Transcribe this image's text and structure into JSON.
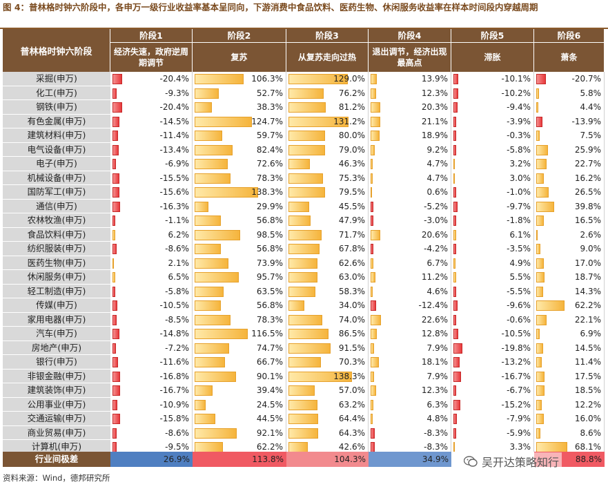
{
  "title": "图 4：普林格时钟六阶段中，各申万一级行业收益率基本呈同向，下游消费中食品饮料、医药生物、休闲服务收益率在样本时间段内穿越周期",
  "header": {
    "corner": "普林格时钟六阶段",
    "stages": [
      {
        "name": "阶段1",
        "desc": "经济失速，政府逆周期调节"
      },
      {
        "name": "阶段2",
        "desc": "复苏"
      },
      {
        "name": "阶段3",
        "desc": "从复苏走向过热"
      },
      {
        "name": "阶段4",
        "desc": "退出调节，经济出现最高点"
      },
      {
        "name": "阶段5",
        "desc": "滞胀"
      },
      {
        "name": "阶段6",
        "desc": "萧条"
      }
    ]
  },
  "rows": [
    {
      "label": "采掘(申万)",
      "values": [
        -20.4,
        106.3,
        129.0,
        13.9,
        -10.1,
        -20.7
      ],
      "display": [
        "-20.4%",
        "106.3%",
        "129.0%",
        "13.9%",
        "-10.1%",
        "-20.7%"
      ]
    },
    {
      "label": "化工(申万)",
      "values": [
        -9.3,
        52.7,
        76.2,
        12.3,
        -10.2,
        5.8
      ],
      "display": [
        "-9.3%",
        "52.7%",
        "76.2%",
        "12.3%",
        "-10.2%",
        "5.8%"
      ]
    },
    {
      "label": "钢铁(申万)",
      "values": [
        -20.4,
        38.3,
        81.2,
        20.3,
        -9.4,
        4.4
      ],
      "display": [
        "-20.4%",
        "38.3%",
        "81.2%",
        "20.3%",
        "-9.4%",
        "4.4%"
      ]
    },
    {
      "label": "有色金属(申万)",
      "values": [
        -14.5,
        124.7,
        131.2,
        21.1,
        -3.9,
        -13.9
      ],
      "display": [
        "-14.5%",
        "124.7%",
        "131.2%",
        "21.1%",
        "-3.9%",
        "-13.9%"
      ]
    },
    {
      "label": "建筑材料(申万)",
      "values": [
        -11.4,
        59.7,
        80.0,
        18.9,
        -0.3,
        7.5
      ],
      "display": [
        "-11.4%",
        "59.7%",
        "80.0%",
        "18.9%",
        "-0.3%",
        "7.5%"
      ]
    },
    {
      "label": "电气设备(申万)",
      "values": [
        -13.4,
        82.4,
        79.0,
        9.2,
        -5.8,
        25.9
      ],
      "display": [
        "-13.4%",
        "82.4%",
        "79.0%",
        "9.2%",
        "-5.8%",
        "25.9%"
      ]
    },
    {
      "label": "电子(申万)",
      "values": [
        -6.9,
        72.6,
        46.3,
        4.7,
        3.2,
        22.7
      ],
      "display": [
        "-6.9%",
        "72.6%",
        "46.3%",
        "4.7%",
        "3.2%",
        "22.7%"
      ]
    },
    {
      "label": "机械设备(申万)",
      "values": [
        -15.5,
        78.3,
        75.3,
        4.7,
        3.0,
        16.2
      ],
      "display": [
        "-15.5%",
        "78.3%",
        "75.3%",
        "4.7%",
        "3.0%",
        "16.2%"
      ]
    },
    {
      "label": "国防军工(申万)",
      "values": [
        -15.6,
        138.3,
        79.5,
        0.6,
        -1.0,
        26.5
      ],
      "display": [
        "-15.6%",
        "138.3%",
        "79.5%",
        "0.6%",
        "-1.0%",
        "26.5%"
      ]
    },
    {
      "label": "通信(申万)",
      "values": [
        -16.3,
        29.9,
        45.5,
        -5.2,
        -9.7,
        39.8
      ],
      "display": [
        "-16.3%",
        "29.9%",
        "45.5%",
        "-5.2%",
        "-9.7%",
        "39.8%"
      ]
    },
    {
      "label": "农林牧渔(申万)",
      "values": [
        -1.1,
        56.8,
        47.9,
        -3.0,
        -1.8,
        16.5
      ],
      "display": [
        "-1.1%",
        "56.8%",
        "47.9%",
        "-3.0%",
        "-1.8%",
        "16.5%"
      ]
    },
    {
      "label": "食品饮料(申万)",
      "values": [
        6.2,
        98.5,
        71.7,
        20.6,
        6.1,
        2.6
      ],
      "display": [
        "6.2%",
        "98.5%",
        "71.7%",
        "20.6%",
        "6.1%",
        "2.6%"
      ]
    },
    {
      "label": "纺织服装(申万)",
      "values": [
        -8.6,
        56.8,
        67.8,
        -4.2,
        -3.5,
        9.0
      ],
      "display": [
        "-8.6%",
        "56.8%",
        "67.8%",
        "-4.2%",
        "-3.5%",
        "9.0%"
      ]
    },
    {
      "label": "医药生物(申万)",
      "values": [
        2.1,
        73.9,
        62.6,
        6.7,
        4.9,
        17.0
      ],
      "display": [
        "2.1%",
        "73.9%",
        "62.6%",
        "6.7%",
        "4.9%",
        "17.0%"
      ]
    },
    {
      "label": "休闲服务(申万)",
      "values": [
        6.5,
        95.7,
        63.0,
        11.2,
        5.5,
        18.7
      ],
      "display": [
        "6.5%",
        "95.7%",
        "63.0%",
        "11.2%",
        "5.5%",
        "18.7%"
      ]
    },
    {
      "label": "轻工制造(申万)",
      "values": [
        -5.8,
        63.5,
        58.3,
        4.6,
        -5.5,
        14.3
      ],
      "display": [
        "-5.8%",
        "63.5%",
        "58.3%",
        "4.6%",
        "-5.5%",
        "14.3%"
      ]
    },
    {
      "label": "传媒(申万)",
      "values": [
        -10.5,
        56.8,
        34.0,
        -12.4,
        -9.6,
        62.2
      ],
      "display": [
        "-10.5%",
        "56.8%",
        "34.0%",
        "-12.4%",
        "-9.6%",
        "62.2%"
      ]
    },
    {
      "label": "家用电器(申万)",
      "values": [
        -8.5,
        78.3,
        74.0,
        22.6,
        -0.6,
        22.1
      ],
      "display": [
        "-8.5%",
        "78.3%",
        "74.0%",
        "22.6%",
        "-0.6%",
        "22.1%"
      ]
    },
    {
      "label": "汽车(申万)",
      "values": [
        -14.8,
        116.5,
        86.5,
        12.8,
        -10.5,
        6.9
      ],
      "display": [
        "-14.8%",
        "116.5%",
        "86.5%",
        "12.8%",
        "-10.5%",
        "6.9%"
      ]
    },
    {
      "label": "房地产(申万)",
      "values": [
        -7.2,
        74.7,
        91.5,
        7.9,
        -19.8,
        14.5
      ],
      "display": [
        "-7.2%",
        "74.7%",
        "91.5%",
        "7.9%",
        "-19.8%",
        "14.5%"
      ]
    },
    {
      "label": "银行(申万)",
      "values": [
        -11.6,
        66.7,
        70.3,
        18.1,
        -13.2,
        11.4
      ],
      "display": [
        "-11.6%",
        "66.7%",
        "70.3%",
        "18.1%",
        "-13.2%",
        "11.4%"
      ]
    },
    {
      "label": "非银金融(申万)",
      "values": [
        -16.8,
        90.1,
        138.3,
        7.9,
        -16.7,
        17.5
      ],
      "display": [
        "-16.8%",
        "90.1%",
        "138.3%",
        "7.9%",
        "-16.7%",
        "17.5%"
      ]
    },
    {
      "label": "建筑装饰(申万)",
      "values": [
        -16.7,
        39.4,
        57.0,
        12.3,
        -6.7,
        18.5
      ],
      "display": [
        "-16.7%",
        "39.4%",
        "57.0%",
        "12.3%",
        "-6.7%",
        "18.5%"
      ]
    },
    {
      "label": "公用事业(申万)",
      "values": [
        -10.9,
        24.5,
        63.2,
        6.3,
        -15.2,
        12.2
      ],
      "display": [
        "-10.9%",
        "24.5%",
        "63.2%",
        "6.3%",
        "-15.2%",
        "12.2%"
      ]
    },
    {
      "label": "交通运输(申万)",
      "values": [
        -15.8,
        44.5,
        64.4,
        4.8,
        -7.9,
        16.0
      ],
      "display": [
        "-15.8%",
        "44.5%",
        "64.4%",
        "4.8%",
        "-7.9%",
        "16.0%"
      ]
    },
    {
      "label": "商业贸易(申万)",
      "values": [
        -8.6,
        92.1,
        64.3,
        -8.3,
        -5.9,
        8.6
      ],
      "display": [
        "-8.6%",
        "92.1%",
        "64.3%",
        "-8.3%",
        "-5.9%",
        "8.6%"
      ]
    },
    {
      "label": "计算机(申万)",
      "values": [
        -9.5,
        62.2,
        42.6,
        -8.3,
        3.3,
        68.1
      ],
      "display": [
        "-9.5%",
        "62.2%",
        "42.6%",
        "-8.3%",
        "3.3%",
        "68.1%"
      ]
    }
  ],
  "footer": {
    "label": "行业间极差",
    "values": [
      "26.9%",
      "113.8%",
      "104.3%",
      "34.9%",
      "",
      "88.8%"
    ],
    "colors": [
      "#4f7fc1",
      "#f05a63",
      "#f28a8e",
      "#6f97cf",
      "#ffffff",
      "#f05a63"
    ]
  },
  "source": "资料来源：Wind，德邦研究所",
  "watermark": "吴开达策略知行",
  "colors": {
    "header_bg": "#7b5534",
    "label_bg": "#d9d9d9",
    "positive": "#f5b43c",
    "negative": "#e8393c",
    "title": "#7a4a1e"
  }
}
